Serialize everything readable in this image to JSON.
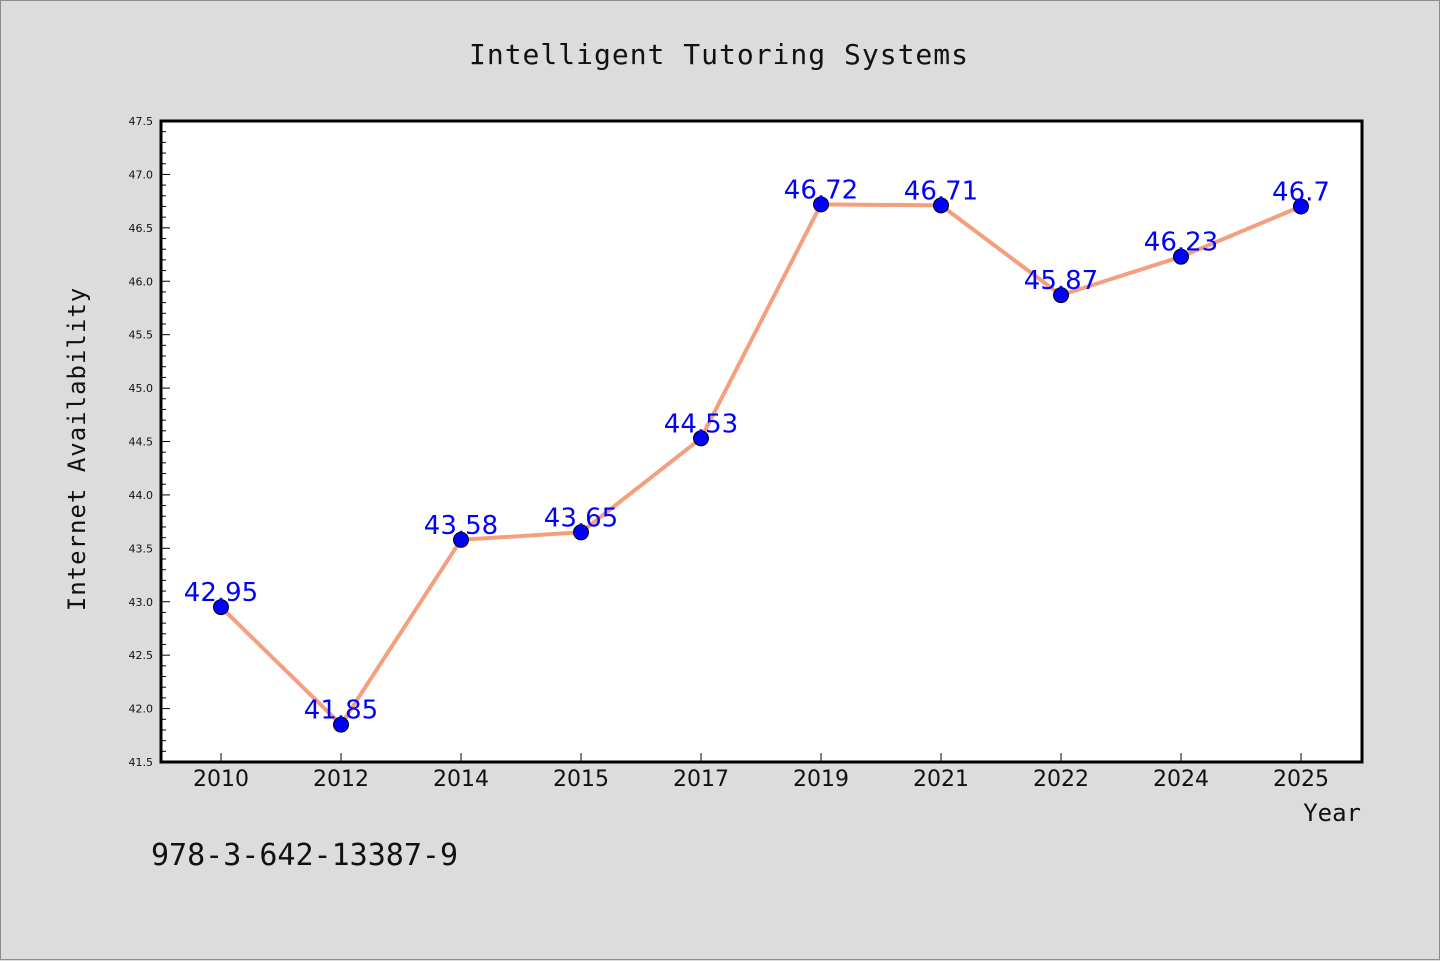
{
  "chart_data": {
    "type": "line",
    "title": "Intelligent Tutoring Systems",
    "xlabel": "Year",
    "ylabel": "Internet Availability",
    "categories": [
      "2010",
      "2012",
      "2014",
      "2015",
      "2017",
      "2019",
      "2021",
      "2022",
      "2024",
      "2025"
    ],
    "series": [
      {
        "values": [
          42.95,
          41.85,
          43.58,
          43.65,
          44.53,
          46.72,
          46.71,
          45.87,
          46.23,
          46.7
        ],
        "labels": [
          "42.95",
          "41.85",
          "43.58",
          "43.65",
          "44.53",
          "46.72",
          "46.71",
          "45.87",
          "46.23",
          "46.7"
        ],
        "line_color": "#f4a07e",
        "marker_color": "#0000ff"
      }
    ],
    "ylim": [
      41.5,
      47.5
    ],
    "yticks": [
      "41.5",
      "42.0",
      "42.5",
      "43.0",
      "43.5",
      "44.0",
      "44.5",
      "45.0",
      "45.5",
      "46.0",
      "46.5",
      "47.0",
      "47.5"
    ],
    "grid": false,
    "legend": "none"
  },
  "annotation": "978-3-642-13387-9",
  "colors": {
    "background": "#dcdcdc",
    "plot_background": "#ffffff",
    "label_color": "#0000ff"
  }
}
